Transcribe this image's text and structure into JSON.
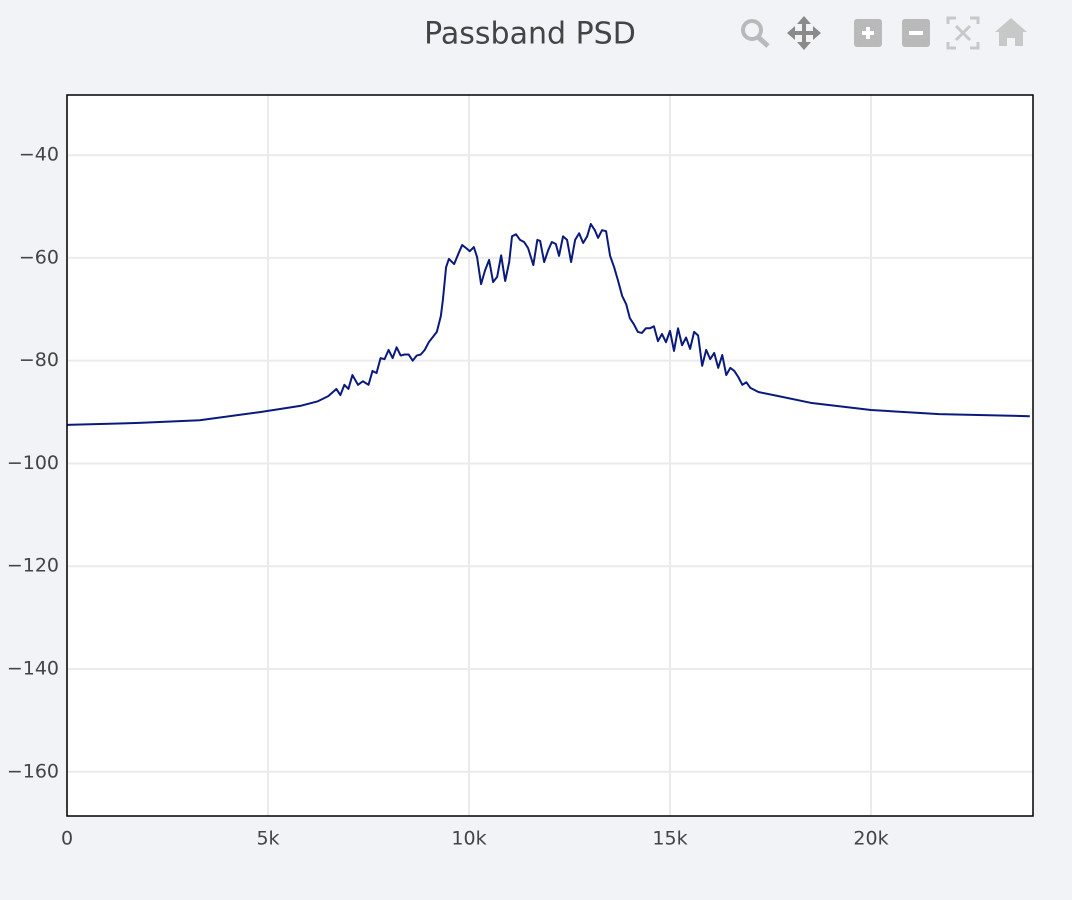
{
  "chart_data": {
    "type": "line",
    "title": "Passband PSD",
    "x": [
      0,
      1800,
      3300,
      4800,
      5800,
      6240,
      6500,
      6700,
      6800,
      6900,
      7000,
      7100,
      7240,
      7360,
      7500,
      7600,
      7700,
      7800,
      7900,
      8000,
      8100,
      8200,
      8300,
      8400,
      8500,
      8600,
      8700,
      8800,
      8900,
      9000,
      9200,
      9300,
      9350,
      9430,
      9500,
      9630,
      9730,
      9830,
      9930,
      10020,
      10120,
      10200,
      10300,
      10400,
      10500,
      10600,
      10700,
      10800,
      10900,
      11000,
      11070,
      11170,
      11270,
      11370,
      11470,
      11600,
      11700,
      11770,
      11870,
      11970,
      12060,
      12160,
      12240,
      12340,
      12440,
      12540,
      12640,
      12740,
      12840,
      12940,
      13030,
      13130,
      13210,
      13310,
      13410,
      13510,
      13610,
      13710,
      13810,
      13910,
      14000,
      14100,
      14200,
      14300,
      14400,
      14500,
      14600,
      14700,
      14800,
      14900,
      15000,
      15100,
      15200,
      15300,
      15400,
      15500,
      15600,
      15700,
      15800,
      15900,
      16000,
      16100,
      16200,
      16300,
      16400,
      16500,
      16600,
      16700,
      16800,
      16900,
      17000,
      17200,
      17700,
      18500,
      20000,
      21700,
      23950
    ],
    "series": [
      {
        "color": "#0a1a7c",
        "values": [
          -92.5,
          -92.1,
          -91.6,
          -90.0,
          -88.8,
          -87.9,
          -86.9,
          -85.5,
          -86.7,
          -84.7,
          -85.5,
          -82.8,
          -84.7,
          -84.0,
          -84.7,
          -82.0,
          -82.4,
          -79.5,
          -79.7,
          -77.9,
          -79.5,
          -77.4,
          -79.0,
          -78.8,
          -78.8,
          -80.0,
          -79.0,
          -78.8,
          -77.9,
          -76.4,
          -74.4,
          -71.3,
          -68.2,
          -61.8,
          -60.2,
          -61.2,
          -59.3,
          -57.5,
          -58.1,
          -58.7,
          -57.9,
          -59.8,
          -65.1,
          -62.4,
          -60.4,
          -64.7,
          -63.7,
          -59.5,
          -64.5,
          -60.8,
          -55.8,
          -55.4,
          -56.5,
          -56.9,
          -58.1,
          -61.4,
          -56.5,
          -56.7,
          -60.8,
          -58.5,
          -56.9,
          -57.3,
          -59.6,
          -55.8,
          -56.5,
          -60.8,
          -56.5,
          -55.2,
          -57.1,
          -55.8,
          -53.4,
          -54.6,
          -56.1,
          -54.6,
          -54.8,
          -59.6,
          -61.8,
          -64.5,
          -67.4,
          -69.0,
          -71.7,
          -72.9,
          -74.4,
          -74.6,
          -73.7,
          -73.7,
          -73.3,
          -76.2,
          -74.8,
          -76.4,
          -74.2,
          -78.1,
          -73.7,
          -77.0,
          -75.5,
          -77.7,
          -74.4,
          -75.1,
          -81.0,
          -77.9,
          -79.7,
          -78.5,
          -81.4,
          -78.9,
          -82.8,
          -81.4,
          -82.0,
          -83.2,
          -84.7,
          -84.2,
          -85.3,
          -86.1,
          -86.9,
          -88.2,
          -89.6,
          -90.4,
          -90.8
        ]
      }
    ],
    "xlim": [
      0,
      24030
    ],
    "xticks": [
      0,
      {
        "value": 5000,
        "label": "5k"
      },
      {
        "value": 10000,
        "label": "10k"
      },
      {
        "value": 15000,
        "label": "15k"
      },
      {
        "value": 20000,
        "label": "20k"
      }
    ],
    "ylim": [
      -168.6,
      -28.3
    ],
    "yticks": [
      {
        "value": -40,
        "label": "−40"
      },
      {
        "value": -60,
        "label": "−60"
      },
      {
        "value": -80,
        "label": "−80"
      },
      {
        "value": -100,
        "label": "−100"
      },
      {
        "value": -120,
        "label": "−120"
      },
      {
        "value": -140,
        "label": "−140"
      },
      {
        "value": -160,
        "label": "−160"
      }
    ],
    "grid": true
  }
}
